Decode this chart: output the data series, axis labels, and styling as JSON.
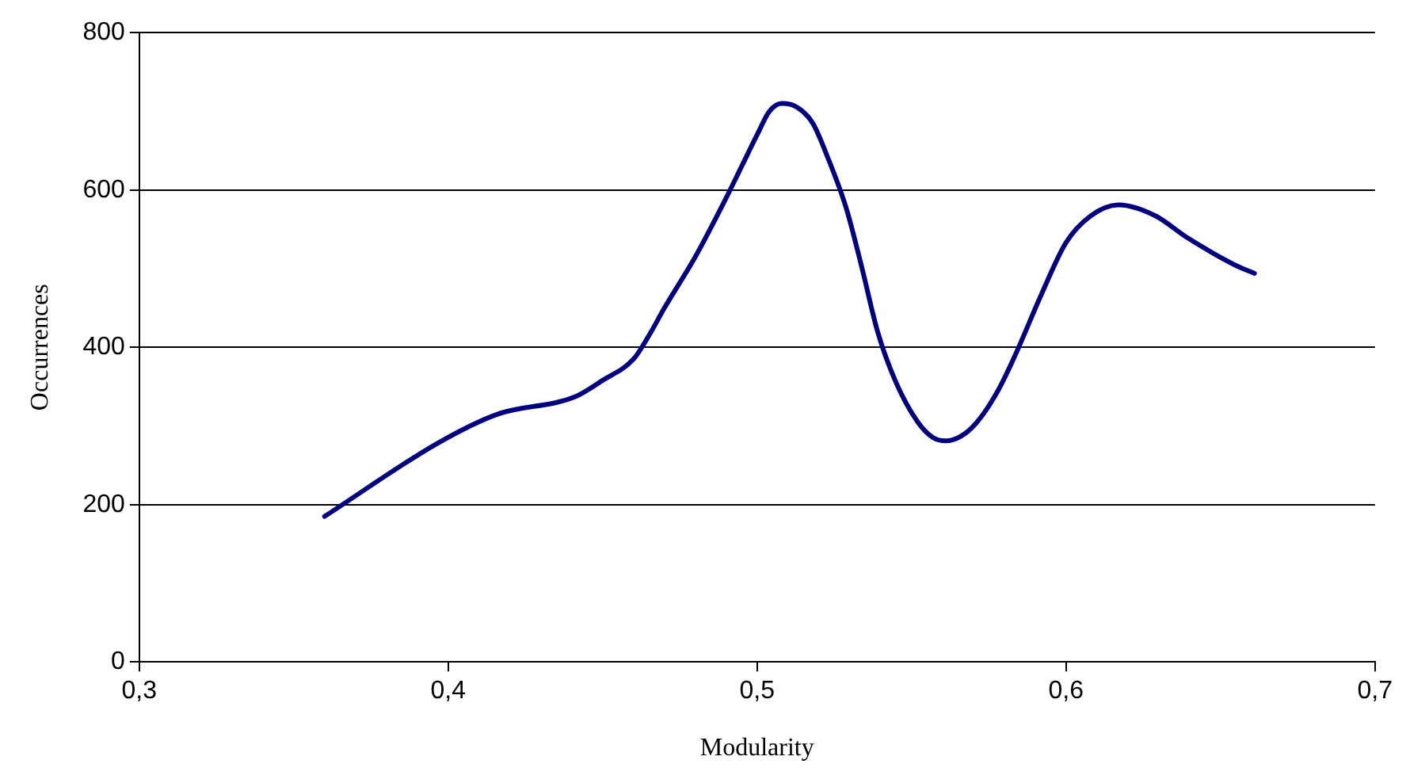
{
  "chart_data": {
    "type": "line",
    "xlabel": "Modularity",
    "ylabel": "Occurrences",
    "xlim": [
      0.3,
      0.7
    ],
    "xticks": [
      {
        "value": 0.3,
        "label": "0,3"
      },
      {
        "value": 0.4,
        "label": "0,4"
      },
      {
        "value": 0.5,
        "label": "0,5"
      },
      {
        "value": 0.6,
        "label": "0,6"
      },
      {
        "value": 0.7,
        "label": "0,7"
      }
    ],
    "ylim": [
      0,
      800
    ],
    "yticks": [
      0,
      200,
      400,
      600,
      800
    ],
    "grid": "y",
    "legend": false,
    "marker": "none",
    "line_style": "solid",
    "series": [
      {
        "color": "#000080",
        "x": [
          0.36,
          0.397,
          0.416,
          0.441,
          0.45,
          0.46,
          0.465,
          0.47,
          0.48,
          0.49,
          0.495,
          0.5,
          0.504,
          0.508,
          0.513,
          0.518,
          0.523,
          0.529,
          0.534,
          0.539,
          0.545,
          0.552,
          0.557,
          0.561,
          0.566,
          0.571,
          0.578,
          0.584,
          0.592,
          0.6,
          0.608,
          0.617,
          0.629,
          0.639,
          0.655,
          0.661
        ],
        "values": [
          185,
          279,
          315,
          337,
          358,
          385,
          415,
          450,
          515,
          590,
          630,
          670,
          700,
          710,
          705,
          685,
          640,
          575,
          500,
          420,
          355,
          305,
          285,
          281,
          287,
          304,
          345,
          394,
          467,
          533,
          567,
          581,
          567,
          540,
          504,
          494
        ]
      }
    ]
  }
}
